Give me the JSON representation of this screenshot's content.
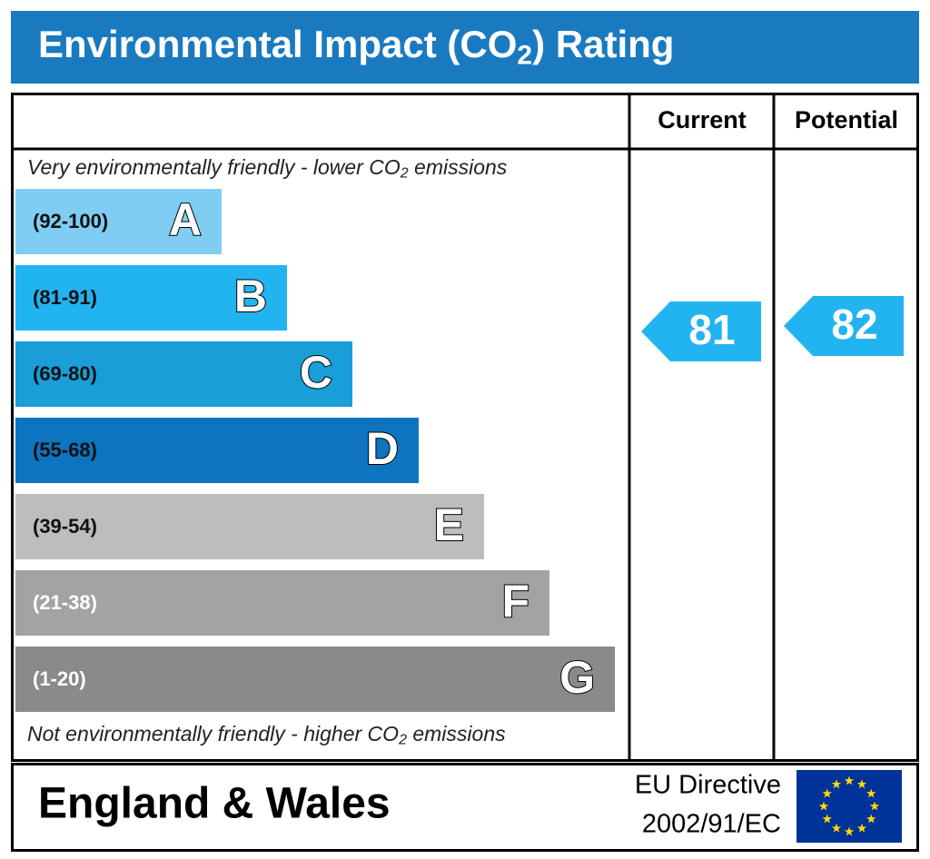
{
  "header": {
    "title": [
      "Environmental Impact (CO",
      "2",
      ") Rating"
    ]
  },
  "columns": [
    "Current",
    "Potential"
  ],
  "top_note": [
    "Very environmentally friendly - lower CO",
    "2",
    " emissions"
  ],
  "bands": [
    {
      "range": "(92-100)",
      "letter": "A",
      "color": "#7fcdf3"
    },
    {
      "range": "(81-91)",
      "letter": "B",
      "color": "#22b4f0"
    },
    {
      "range": "(69-80)",
      "letter": "C",
      "color": "#1a9ed8"
    },
    {
      "range": "(55-68)",
      "letter": "D",
      "color": "#0d74bf"
    },
    {
      "range": "(39-54)",
      "letter": "E",
      "color": "#bdbdbd"
    },
    {
      "range": "(21-38)",
      "letter": "F",
      "color": "#a3a3a3"
    },
    {
      "range": "(1-20)",
      "letter": "G",
      "color": "#8a8a8a"
    }
  ],
  "bottom_note": [
    "Not environmentally friendly - higher CO",
    "2",
    " emissions"
  ],
  "ratings": {
    "current": 81,
    "potential": 82
  },
  "footer": {
    "region": "England & Wales",
    "directive": [
      "EU Directive",
      "2002/91/EC"
    ]
  }
}
